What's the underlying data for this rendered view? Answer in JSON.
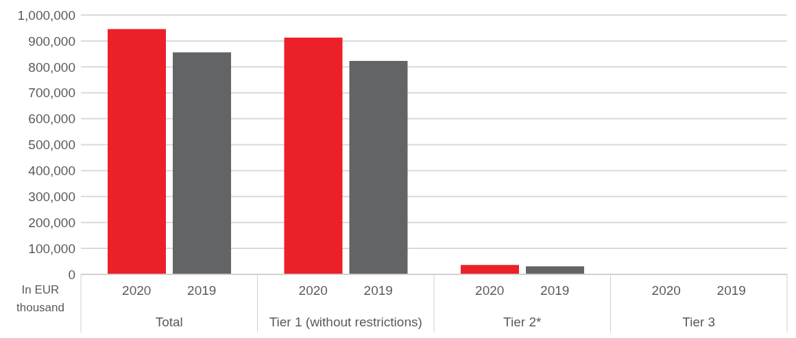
{
  "chart_data": {
    "type": "bar",
    "ylabel": "In EUR thousand",
    "categories": [
      "Total",
      "Tier 1 (without restrictions)",
      "Tier 2*",
      "Tier 3"
    ],
    "series": [
      {
        "name": "2020",
        "color": "#ec2028",
        "values": [
          946000,
          913000,
          36000,
          0
        ]
      },
      {
        "name": "2019",
        "color": "#636466",
        "values": [
          856000,
          823000,
          31000,
          0
        ]
      }
    ],
    "ylim": [
      0,
      1000000
    ],
    "yticks": [
      0,
      {
        "value": 100000,
        "label": "100,000"
      },
      {
        "value": 200000,
        "label": "200,000"
      },
      {
        "value": 300000,
        "label": "300,000"
      },
      {
        "value": 400000,
        "label": "400,000"
      },
      {
        "value": 500000,
        "label": "500,000"
      },
      {
        "value": 600000,
        "label": "600,000"
      },
      {
        "value": 700000,
        "label": "700,000"
      },
      {
        "value": 800000,
        "label": "800,000"
      },
      {
        "value": 900000,
        "label": "900,000"
      },
      {
        "value": 1000000,
        "label": "1,000,000"
      }
    ],
    "grid": "y",
    "legend": false
  }
}
